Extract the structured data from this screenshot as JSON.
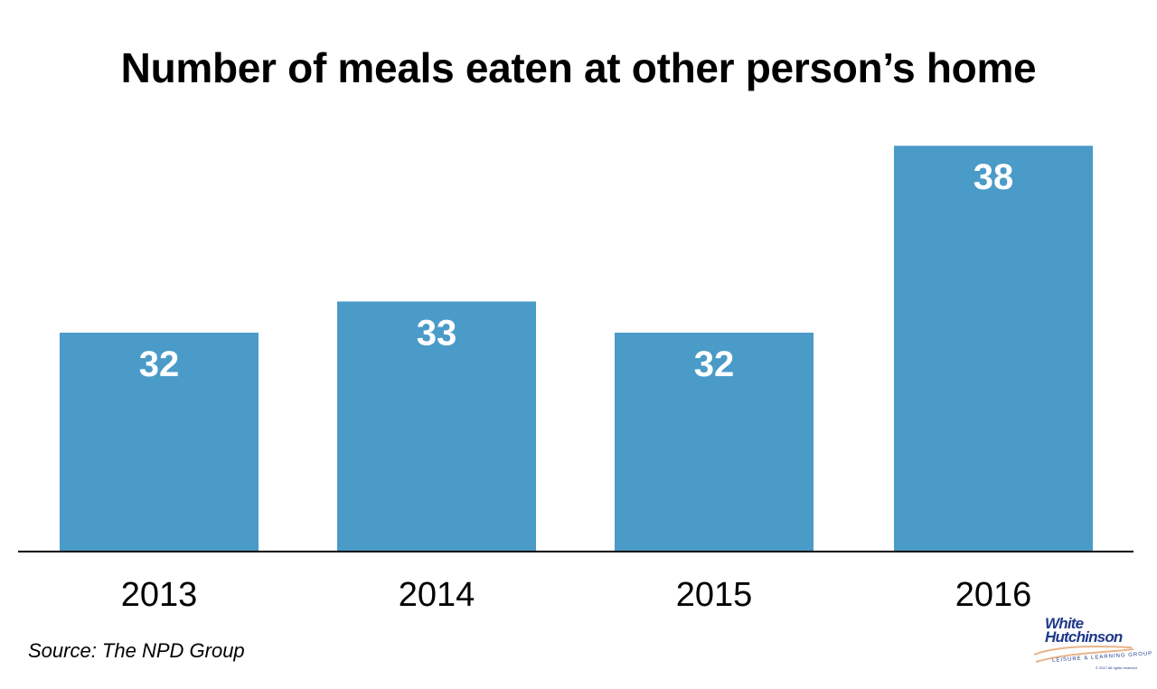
{
  "chart_data": {
    "type": "bar",
    "title": "Number of meals eaten at other person’s home",
    "categories": [
      "2013",
      "2014",
      "2015",
      "2016"
    ],
    "values": [
      32,
      33,
      32,
      38
    ],
    "data_labels": [
      "32",
      "33",
      "32",
      "38"
    ],
    "xlabel": "",
    "ylabel": "",
    "ylim": [
      25,
      38.5
    ],
    "grid": false,
    "legend": "none",
    "bar_color": "#4a9bc8",
    "label_color": "#ffffff",
    "source": "Source: The NPD Group"
  },
  "logo": {
    "line1": "White",
    "line2": "Hutchinson",
    "tagline": "LEISURE & LEARNING GROUP",
    "copyright": "© 2017 All rights reserved",
    "brand_color": "#1f3a8a",
    "swoosh_color": "#e8b48a"
  }
}
